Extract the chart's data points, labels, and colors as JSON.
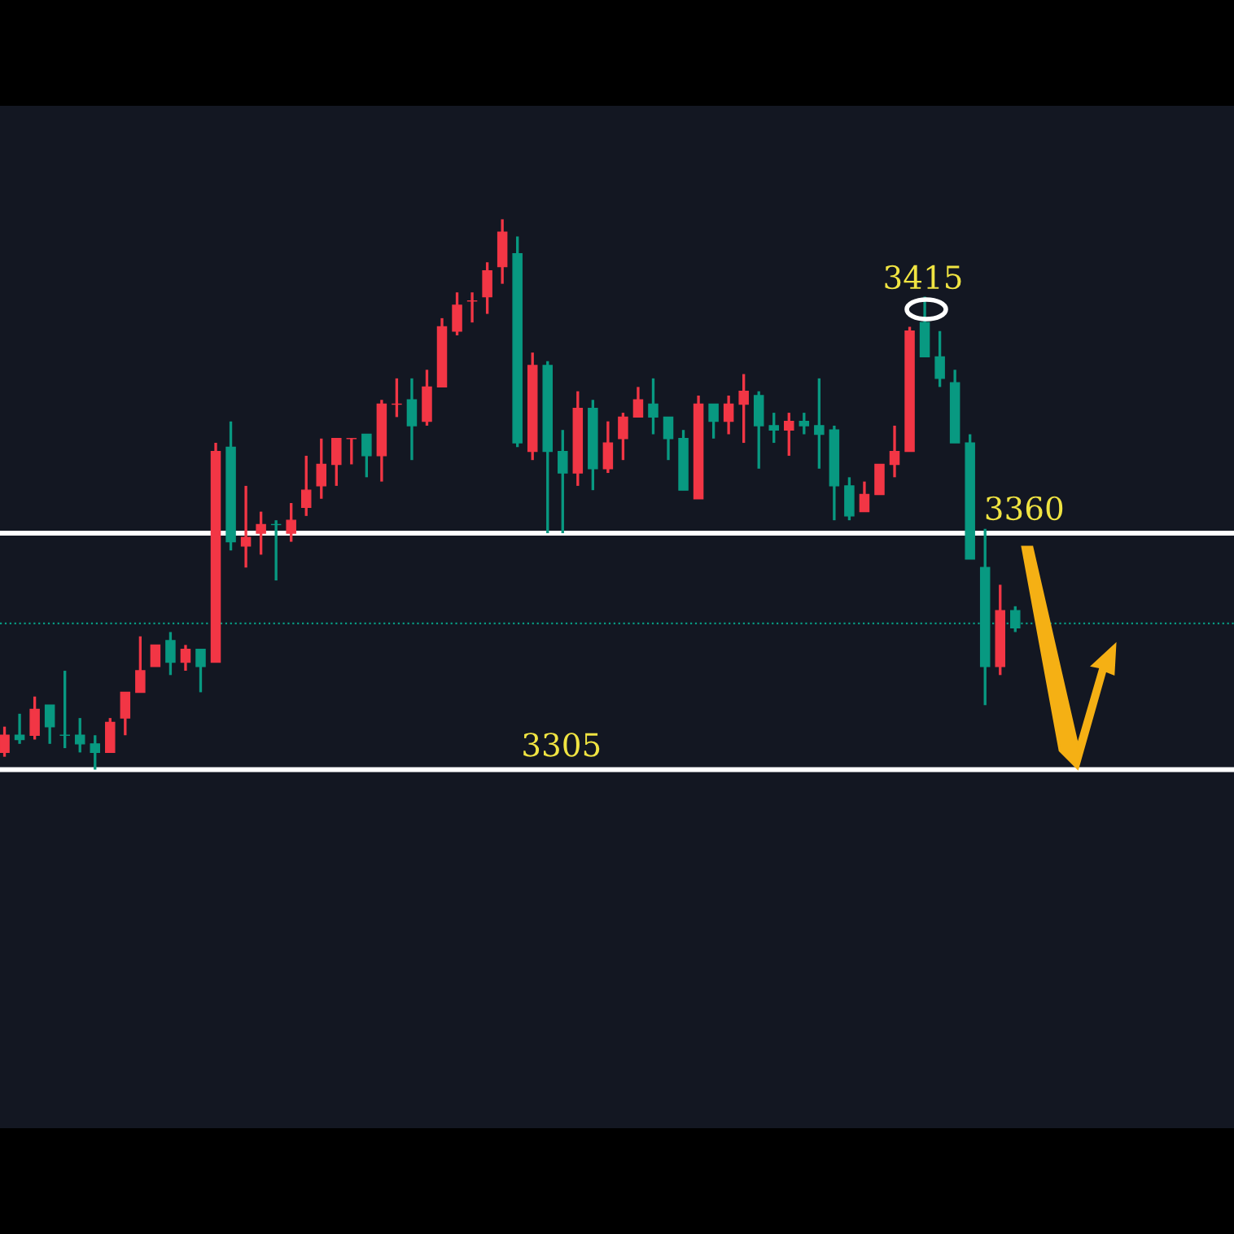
{
  "chart_data": {
    "type": "candlestick",
    "ylim": [
      3197,
      3484
    ],
    "categories": [
      null,
      null,
      null,
      null,
      null,
      null,
      null,
      null,
      null,
      null,
      null,
      null,
      null,
      null,
      null,
      null,
      null,
      null,
      null,
      null,
      null,
      null,
      null,
      null,
      null,
      null,
      null,
      null,
      null,
      null,
      null,
      null,
      null,
      null,
      null,
      null,
      null,
      null,
      null,
      null,
      null,
      null,
      null,
      null,
      null,
      null,
      null,
      null,
      null,
      null,
      null,
      null,
      null,
      null,
      null,
      null,
      null,
      null,
      null,
      null,
      null,
      null,
      null,
      null,
      null,
      null,
      null,
      null
    ],
    "ohlc": [
      [
        3309,
        3315,
        3308,
        3313
      ],
      [
        3313,
        3318,
        3311,
        3312
      ],
      [
        3313,
        3322,
        3312,
        3319
      ],
      [
        3320,
        3320,
        3311,
        3315
      ],
      [
        3313,
        3328,
        3310,
        3313
      ],
      [
        3313,
        3317,
        3309,
        3311
      ],
      [
        3311,
        3313,
        3305,
        3309
      ],
      [
        3309,
        3317,
        3309,
        3316
      ],
      [
        3317,
        3323,
        3313,
        3323
      ],
      [
        3323,
        3336,
        3323,
        3328
      ],
      [
        3329,
        3334,
        3329,
        3334
      ],
      [
        3335,
        3337,
        3327,
        3330
      ],
      [
        3330,
        3334,
        3328,
        3333
      ],
      [
        3333,
        3333,
        3323,
        3329
      ],
      [
        3330,
        3381,
        3330,
        3379
      ],
      [
        3380,
        3386,
        3356,
        3358
      ],
      [
        3357,
        3371,
        3352,
        3359
      ],
      [
        3360,
        3365,
        3355,
        3362
      ],
      [
        3362,
        3363,
        3349,
        3362
      ],
      [
        3360,
        3367,
        3358,
        3363
      ],
      [
        3366,
        3378,
        3364,
        3370
      ],
      [
        3371,
        3382,
        3368,
        3376
      ],
      [
        3376,
        3382,
        3371,
        3382
      ],
      [
        3382,
        3382,
        3376,
        3382
      ],
      [
        3383,
        3383,
        3373,
        3378
      ],
      [
        3378,
        3391,
        3372,
        3390
      ],
      [
        3390,
        3396,
        3387,
        3390
      ],
      [
        3391,
        3396,
        3377,
        3385
      ],
      [
        3386,
        3398,
        3385,
        3394
      ],
      [
        3394,
        3410,
        3394,
        3408
      ],
      [
        3407,
        3416,
        3406,
        3413
      ],
      [
        3414,
        3416,
        3409,
        3414
      ],
      [
        3415,
        3423,
        3411,
        3421
      ],
      [
        3422,
        3433,
        3418,
        3430
      ],
      [
        3425,
        3429,
        3380,
        3381
      ],
      [
        3379,
        3402,
        3377,
        3399
      ],
      [
        3399,
        3400,
        3360,
        3379
      ],
      [
        3379,
        3384,
        3360,
        3374
      ],
      [
        3374,
        3393,
        3371,
        3389
      ],
      [
        3389,
        3391,
        3370,
        3375
      ],
      [
        3375,
        3386,
        3374,
        3381
      ],
      [
        3382,
        3388,
        3377,
        3387
      ],
      [
        3387,
        3394,
        3387,
        3391
      ],
      [
        3390,
        3396,
        3383,
        3387
      ],
      [
        3387,
        3387,
        3377,
        3382
      ],
      [
        3382,
        3384,
        3370,
        3370
      ],
      [
        3368,
        3392,
        3368,
        3390
      ],
      [
        3390,
        3390,
        3382,
        3386
      ],
      [
        3386,
        3392,
        3383,
        3390
      ],
      [
        3390,
        3397,
        3381,
        3393
      ],
      [
        3392,
        3393,
        3375,
        3385
      ],
      [
        3385,
        3388,
        3381,
        3384
      ],
      [
        3384,
        3388,
        3378,
        3386
      ],
      [
        3386,
        3388,
        3383,
        3385
      ],
      [
        3385,
        3396,
        3375,
        3383
      ],
      [
        3384,
        3385,
        3363,
        3371
      ],
      [
        3371,
        3373,
        3363,
        3364
      ],
      [
        3365,
        3372,
        3365,
        3369
      ],
      [
        3369,
        3376,
        3369,
        3376
      ],
      [
        3376,
        3385,
        3373,
        3379
      ],
      [
        3379,
        3408,
        3379,
        3407
      ],
      [
        3409,
        3415,
        3401,
        3401
      ],
      [
        3401,
        3407,
        3394,
        3396
      ],
      [
        3395,
        3398,
        3381,
        3381
      ],
      [
        3381,
        3383,
        3354,
        3354
      ],
      [
        3352,
        3361,
        3320,
        3329
      ],
      [
        3329,
        3348,
        3327,
        3342
      ],
      [
        3342,
        3343,
        3337,
        3338
      ]
    ],
    "colors": [
      "#f23645",
      "#089981",
      "#f23645",
      "#089981",
      "#089981",
      "#089981",
      "#089981",
      "#f23645",
      "#f23645",
      "#f23645",
      "#f23645",
      "#089981",
      "#f23645",
      "#089981",
      "#f23645",
      "#089981",
      "#f23645",
      "#f23645",
      "#089981",
      "#f23645",
      "#f23645",
      "#f23645",
      "#f23645",
      "#f23645",
      "#089981",
      "#f23645",
      "#f23645",
      "#089981",
      "#f23645",
      "#f23645",
      "#f23645",
      "#f23645",
      "#f23645",
      "#f23645",
      "#089981",
      "#f23645",
      "#089981",
      "#089981",
      "#f23645",
      "#089981",
      "#f23645",
      "#f23645",
      "#f23645",
      "#089981",
      "#089981",
      "#089981",
      "#f23645",
      "#089981",
      "#f23645",
      "#f23645",
      "#089981",
      "#089981",
      "#f23645",
      "#089981",
      "#089981",
      "#089981",
      "#089981",
      "#f23645",
      "#f23645",
      "#f23645",
      "#f23645",
      "#089981",
      "#089981",
      "#089981",
      "#089981",
      "#089981",
      "#f23645",
      "#089981"
    ],
    "ref_lines": [
      {
        "axis": "y",
        "value": 3360,
        "label": "3360",
        "color": "#ffffff",
        "line_style": "solid"
      },
      {
        "axis": "y",
        "value": 3305,
        "label": "3305",
        "color": "#ffffff",
        "line_style": "solid"
      },
      {
        "axis": "y",
        "value": 3339,
        "color": "#089981",
        "line_style": "dotted"
      }
    ],
    "annotations": [
      "3415"
    ]
  }
}
